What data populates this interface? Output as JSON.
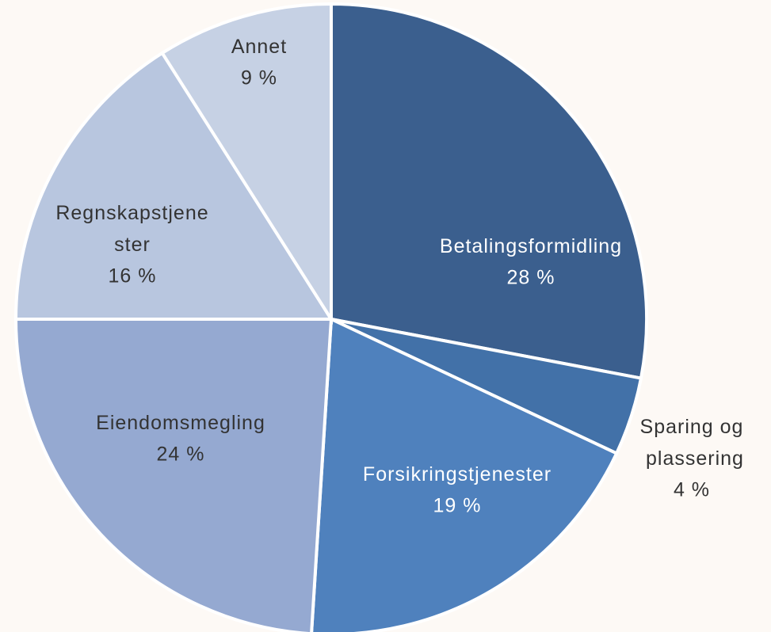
{
  "chart_data": {
    "type": "pie",
    "categories": [
      "Betalingsformidling",
      "Sparing og plassering",
      "Forsikringstjenester",
      "Eiendomsmegling",
      "Regnskapstjenester",
      "Annet"
    ],
    "values": [
      28,
      4,
      19,
      24,
      16,
      9
    ],
    "value_labels": [
      "28 %",
      "4 %",
      "19 %",
      "24 %",
      "16 %",
      "9 %"
    ],
    "colors": [
      "#3b5f8e",
      "#4271a8",
      "#4f81bd",
      "#95a9d1",
      "#b8c6df",
      "#c6d1e4"
    ]
  }
}
